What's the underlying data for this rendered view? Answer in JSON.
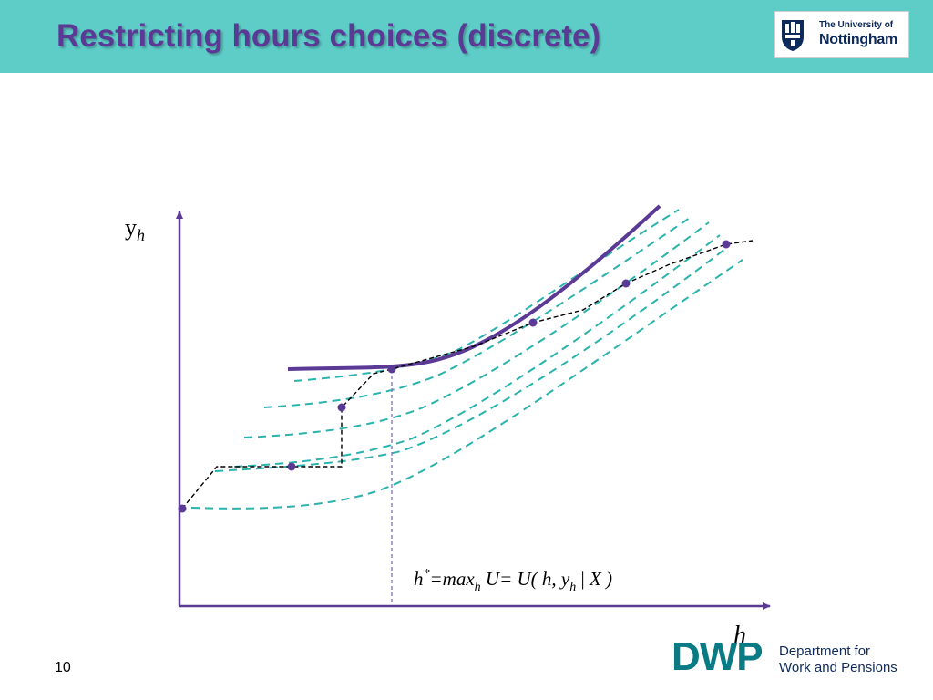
{
  "header": {
    "title": "Restricting hours choices (discrete)",
    "bg_color": "#5ecdc7",
    "title_color": "#5b3a96"
  },
  "logo": {
    "line1": "The University of",
    "line2": "Nottingham",
    "icon": "nottingham-crest-icon"
  },
  "diagram": {
    "y_axis_label": "y",
    "y_axis_subscript": "h",
    "x_axis_label": "h",
    "formula": {
      "h": "h",
      "star": "*",
      "eq": "=",
      "max": "max",
      "max_sub": "h",
      "u": " U",
      "eq2": "=",
      "rhs_open": " U( h, y",
      "rhs_sub": "h",
      "bar": " | ",
      "rhs_close": "X )"
    },
    "colors": {
      "axis": "#5b3a96",
      "highest_indifference_curve": "#5b3a96",
      "indifference_curves": "#2ab3ad",
      "budget_points": "#5b3a96",
      "budget_line": "#000000",
      "optimum_dropline": "#8a78c0"
    }
  },
  "footer": {
    "slide_number": "10",
    "dwp_mark": "DWP",
    "dwp_line1": "Department for",
    "dwp_line2": "Work and Pensions"
  }
}
